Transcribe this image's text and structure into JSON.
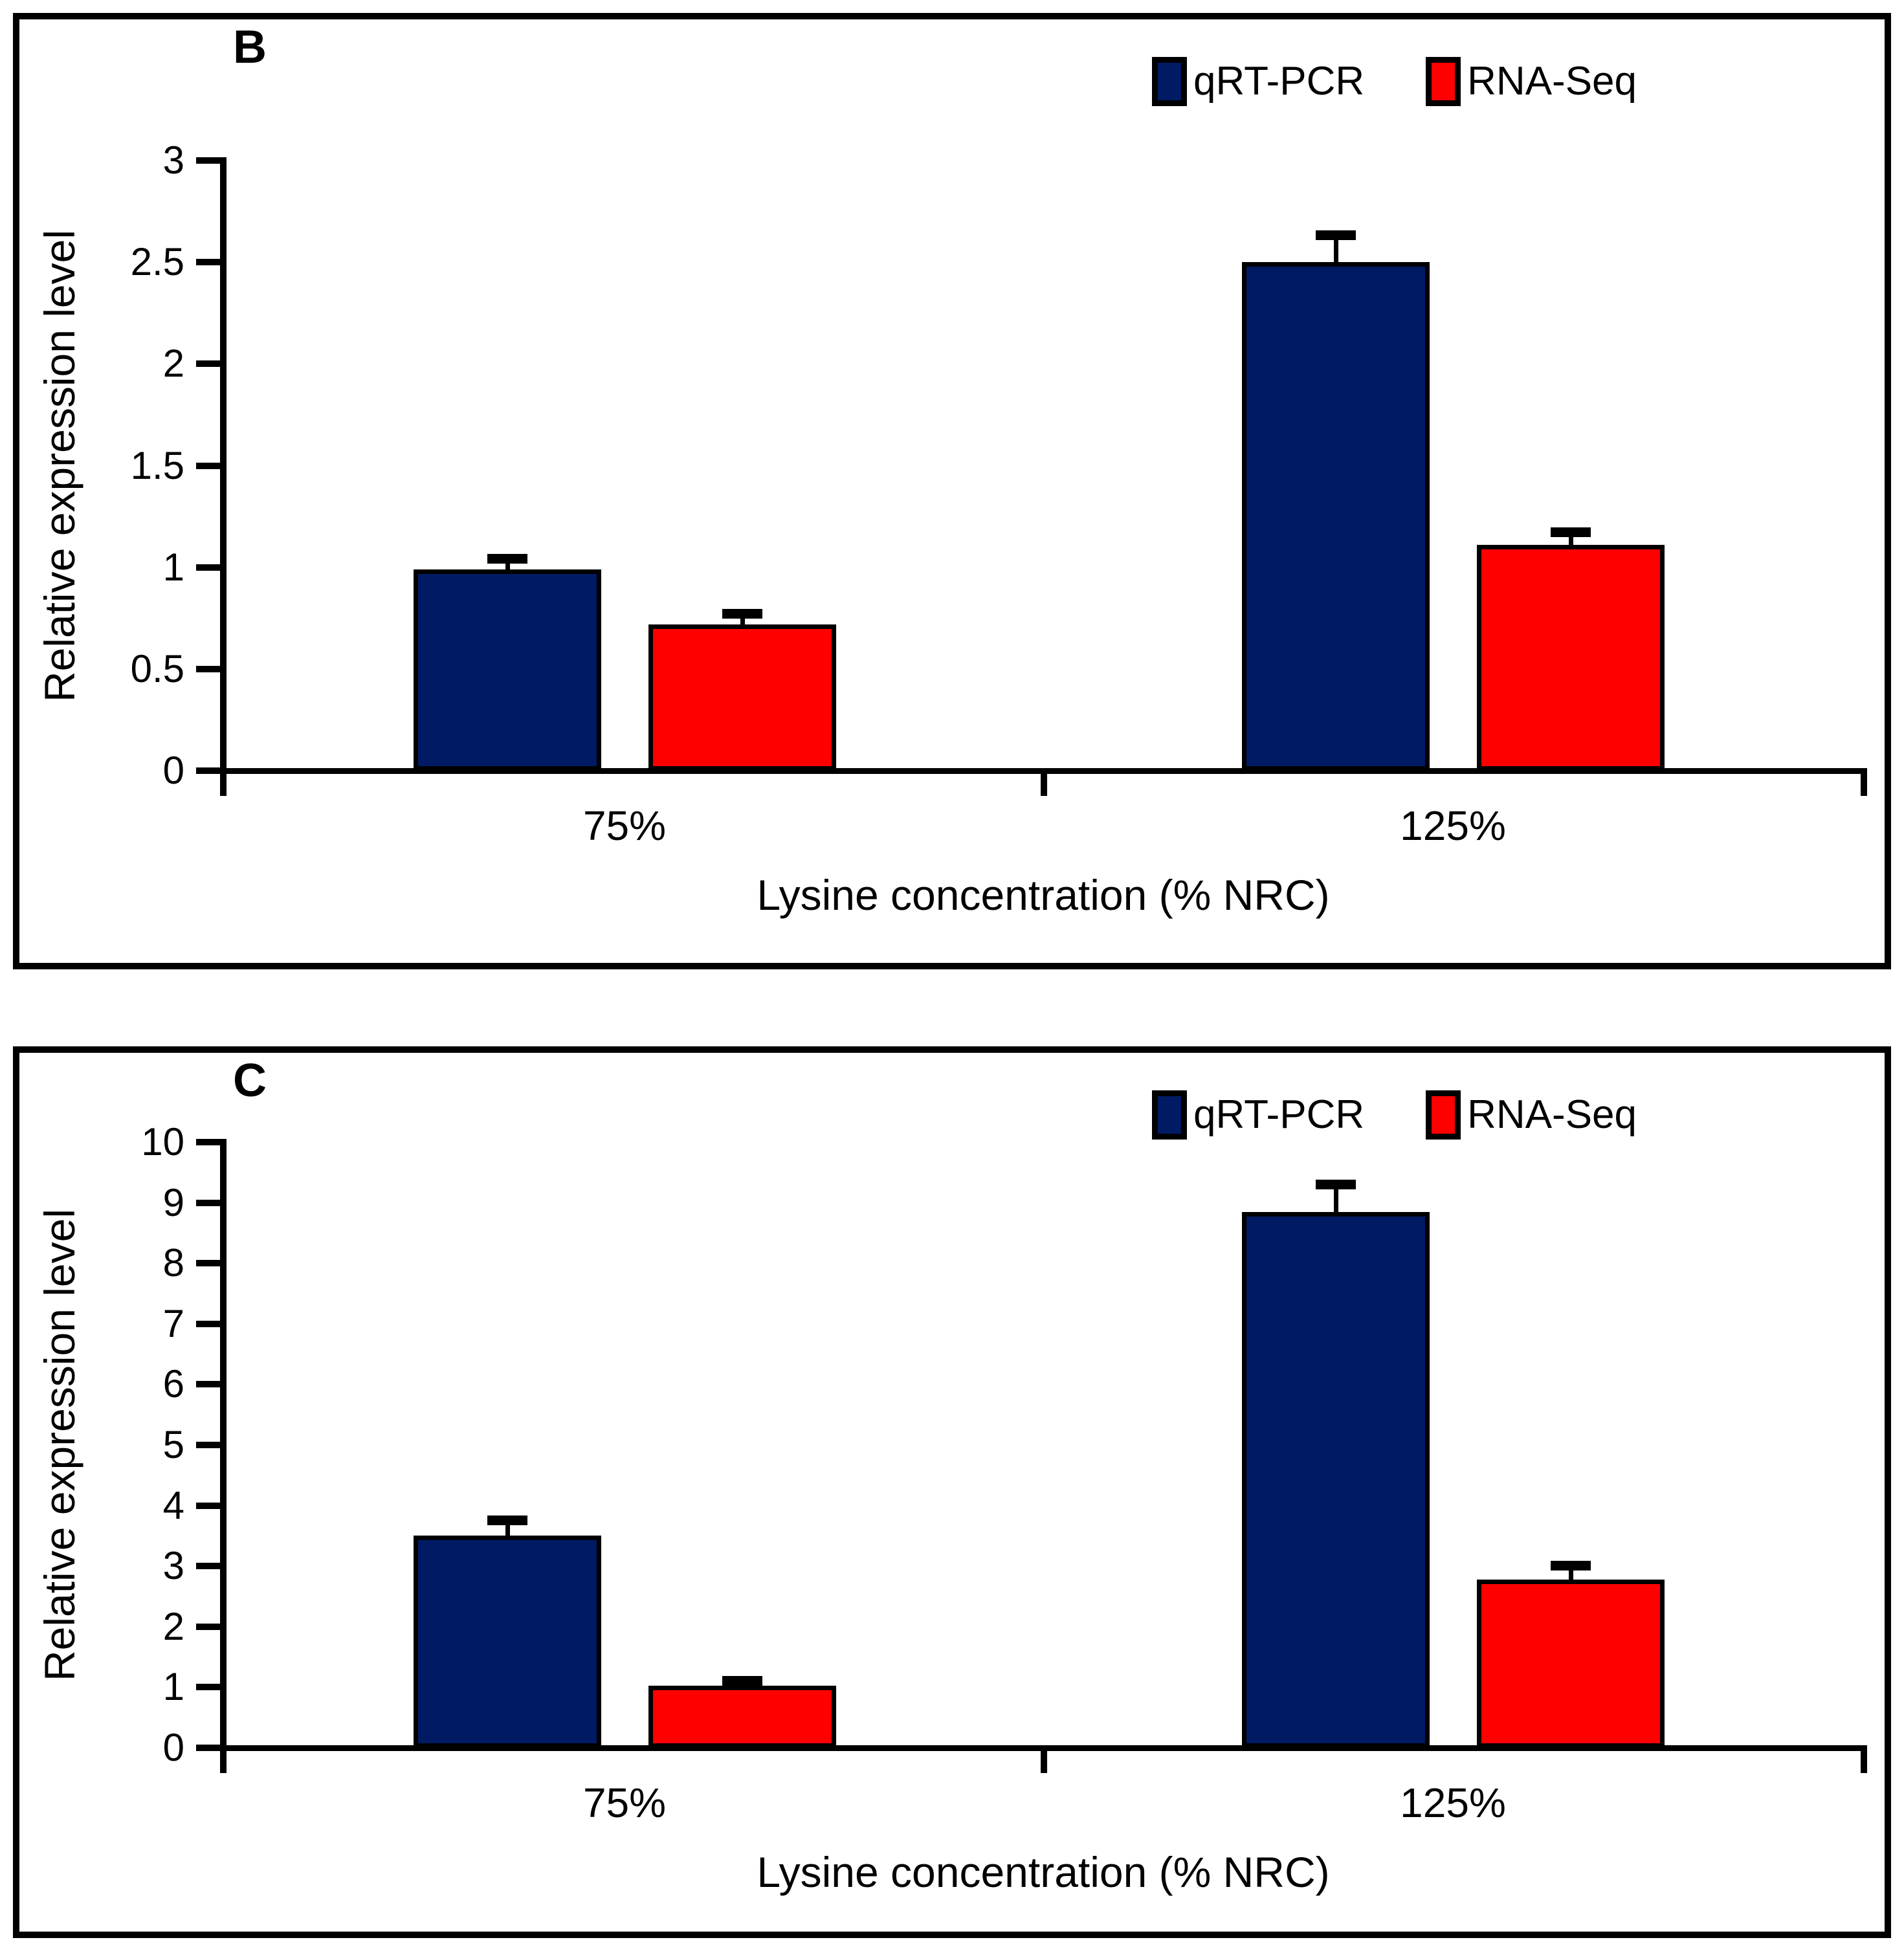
{
  "figure_type": "two-panel grouped bar chart figure",
  "chart_data": [
    {
      "type": "bar",
      "panel_label": "B",
      "categories": [
        "75%",
        "125%"
      ],
      "series": [
        {
          "name": "qRT-PCR",
          "color": "#001B63",
          "values": [
            0.99,
            2.5
          ],
          "errors": [
            0.05,
            0.13
          ]
        },
        {
          "name": "RNA-Seq",
          "color": "#FF0000",
          "values": [
            0.72,
            1.11
          ],
          "errors": [
            0.05,
            0.06
          ]
        }
      ],
      "xlabel": "Lysine concentration (% NRC)",
      "ylabel": "Relative expression level",
      "ylim": [
        0,
        3
      ],
      "yticks": [
        "0",
        "0.5",
        "1",
        "1.5",
        "2",
        "2.5",
        "3"
      ],
      "legend_position": "top-right",
      "grid": false,
      "error_bars": "upper only, black caps",
      "bar_outline_color": "#000000"
    },
    {
      "type": "bar",
      "panel_label": "C",
      "categories": [
        "75%",
        "125%"
      ],
      "series": [
        {
          "name": "qRT-PCR",
          "color": "#001B63",
          "values": [
            3.5,
            8.85
          ],
          "errors": [
            0.25,
            0.45
          ]
        },
        {
          "name": "RNA-Seq",
          "color": "#FF0000",
          "values": [
            1.03,
            2.78
          ],
          "errors": [
            0.07,
            0.22
          ]
        }
      ],
      "xlabel": "Lysine concentration (% NRC)",
      "ylabel": "Relative expression level",
      "ylim": [
        0,
        10
      ],
      "yticks": [
        "0",
        "1",
        "2",
        "3",
        "4",
        "5",
        "6",
        "7",
        "8",
        "9",
        "10"
      ],
      "legend_position": "top-right",
      "grid": false,
      "error_bars": "upper only, black caps",
      "bar_outline_color": "#000000"
    }
  ]
}
